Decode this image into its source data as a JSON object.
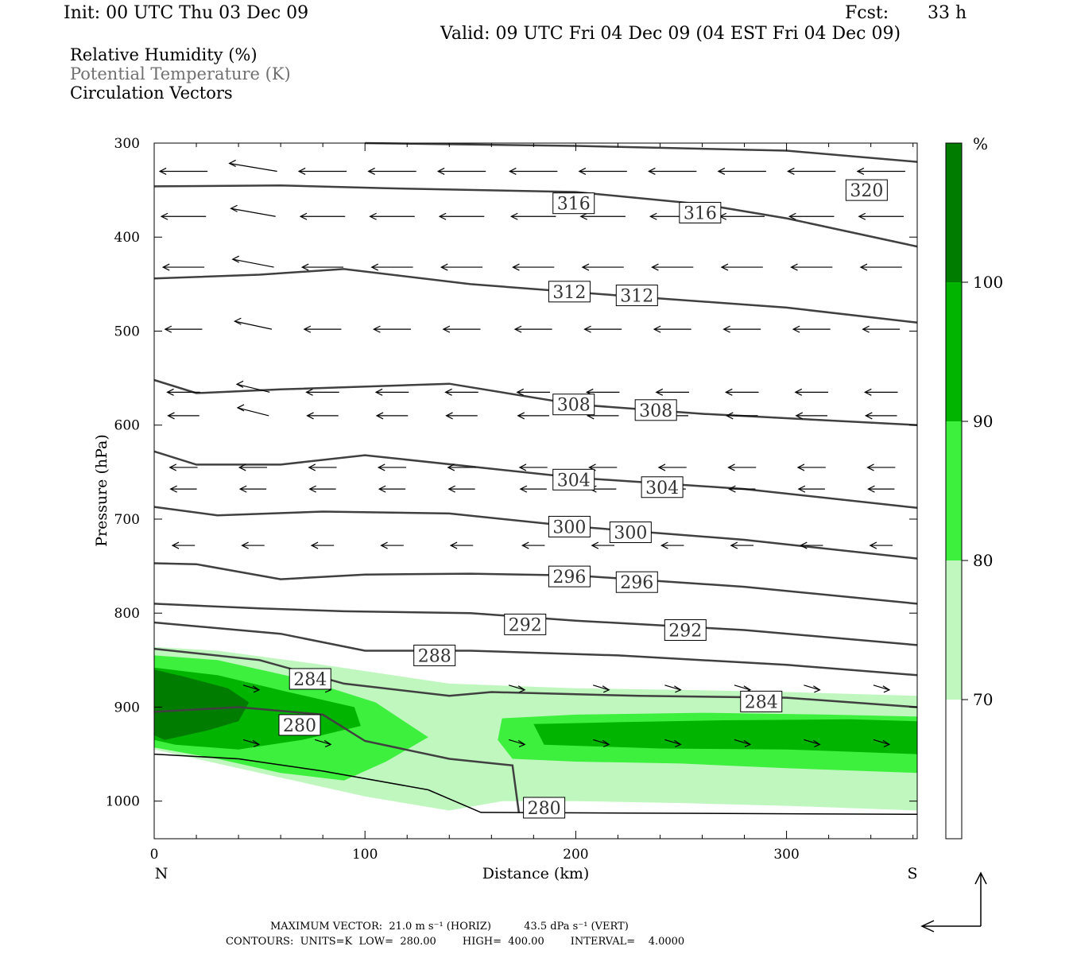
{
  "header": {
    "init": "Init: 00 UTC Thu 03 Dec 09",
    "fcst_label": "Fcst:",
    "fcst_value": "33 h",
    "valid": "Valid: 09 UTC Fri 04 Dec 09 (04 EST Fri 04 Dec 09)"
  },
  "legend_lines": {
    "rh": "Relative Humidity (%)",
    "theta": "Potential Temperature (K)",
    "vectors": "Circulation Vectors"
  },
  "colors": {
    "rh70": "#bff7bf",
    "rh80": "#3df03d",
    "rh90": "#00b400",
    "rh100": "#007d00",
    "contour": "#404040"
  },
  "chart_data": {
    "type": "contour",
    "xlabel": "Distance (km)",
    "ylabel": "Pressure (hPa)",
    "xlim": [
      0,
      362
    ],
    "ylim": [
      1040,
      300
    ],
    "x_ticks": [
      0,
      100,
      200,
      300
    ],
    "y_ticks": [
      300,
      400,
      500,
      600,
      700,
      800,
      900,
      1000
    ],
    "endpoint_left": "N",
    "endpoint_right": "S",
    "colorbar": {
      "unit": "%",
      "levels": [
        70,
        80,
        90,
        100
      ]
    },
    "theta_contour_labels": [
      {
        "value": "320",
        "x": 338,
        "p": 350
      },
      {
        "value": "316",
        "x": 199,
        "p": 364
      },
      {
        "value": "316",
        "x": 259,
        "p": 374
      },
      {
        "value": "312",
        "x": 197,
        "p": 458
      },
      {
        "value": "312",
        "x": 229,
        "p": 462
      },
      {
        "value": "308",
        "x": 199,
        "p": 578
      },
      {
        "value": "308",
        "x": 238,
        "p": 584
      },
      {
        "value": "304",
        "x": 199,
        "p": 658
      },
      {
        "value": "304",
        "x": 241,
        "p": 666
      },
      {
        "value": "300",
        "x": 197,
        "p": 708
      },
      {
        "value": "300",
        "x": 226,
        "p": 714
      },
      {
        "value": "296",
        "x": 197,
        "p": 761
      },
      {
        "value": "296",
        "x": 229,
        "p": 767
      },
      {
        "value": "292",
        "x": 176,
        "p": 812
      },
      {
        "value": "292",
        "x": 252,
        "p": 818
      },
      {
        "value": "288",
        "x": 133,
        "p": 845
      },
      {
        "value": "284",
        "x": 74,
        "p": 870
      },
      {
        "value": "284",
        "x": 288,
        "p": 894
      },
      {
        "value": "280",
        "x": 69,
        "p": 919
      },
      {
        "value": "280",
        "x": 185,
        "p": 1007
      }
    ],
    "max_vector": "MAXIMUM VECTOR:  21.0 m s⁻¹ (HORIZ)          43.5 dPa s⁻¹ (VERT)",
    "contours_info": "CONTOURS:  UNITS=K  LOW=  280.00        HIGH=  400.00        INTERVAL=    4.0000"
  }
}
